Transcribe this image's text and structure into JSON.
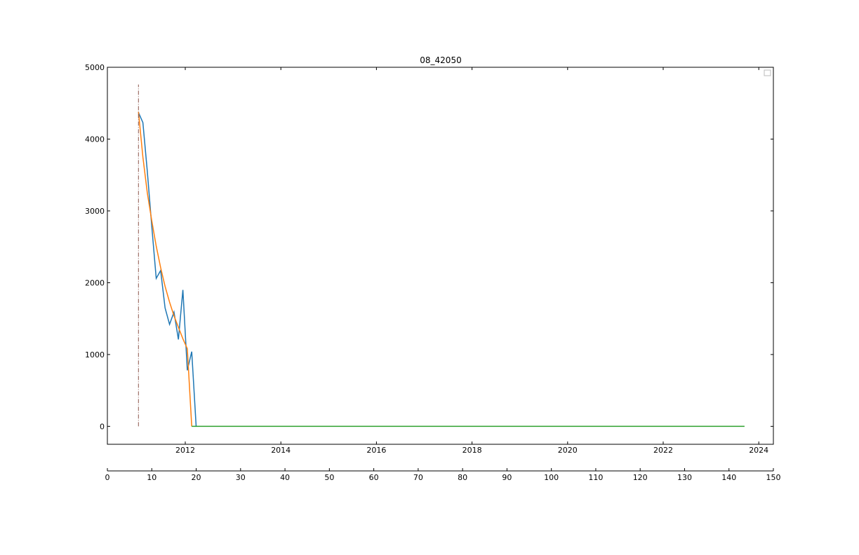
{
  "chart_data": {
    "type": "line",
    "title": "08_42050",
    "xlabel": "",
    "ylabel": "",
    "ylim": [
      -250,
      5000
    ],
    "yticks": [
      0,
      1000,
      2000,
      3000,
      4000,
      5000
    ],
    "date_axis": {
      "ticks": [
        "2012",
        "2014",
        "2016",
        "2018",
        "2020",
        "2022",
        "2024"
      ]
    },
    "index_axis": {
      "range": [
        0,
        150
      ],
      "ticks": [
        0,
        10,
        20,
        30,
        40,
        50,
        60,
        70,
        80,
        90,
        100,
        110,
        120,
        130,
        140,
        150
      ]
    },
    "grid": false,
    "legend": {
      "placement": "top-right",
      "entries": []
    },
    "series": [
      {
        "color": "#1f77b4",
        "style": "solid",
        "x": [
          7,
          8,
          9,
          10,
          11,
          12,
          13,
          14,
          15,
          16,
          17,
          18,
          19,
          20
        ],
        "y": [
          4370,
          4230,
          3550,
          2780,
          2060,
          2170,
          1650,
          1420,
          1590,
          1210,
          1900,
          780,
          1040,
          0
        ]
      },
      {
        "color": "#ff7f0e",
        "style": "solid",
        "x": [
          7,
          8,
          9,
          10,
          11,
          12,
          13,
          14,
          15,
          16,
          17,
          18,
          19
        ],
        "y": [
          4380,
          3750,
          3250,
          2860,
          2510,
          2210,
          1950,
          1730,
          1540,
          1380,
          1220,
          1080,
          0
        ]
      },
      {
        "color": "#2ca02c",
        "style": "solid",
        "x": [
          19,
          143.5
        ],
        "y": [
          0,
          0
        ]
      },
      {
        "color": "#8c564b",
        "style": "dashdot",
        "x": [
          7,
          7
        ],
        "y": [
          0,
          4760
        ]
      }
    ]
  }
}
